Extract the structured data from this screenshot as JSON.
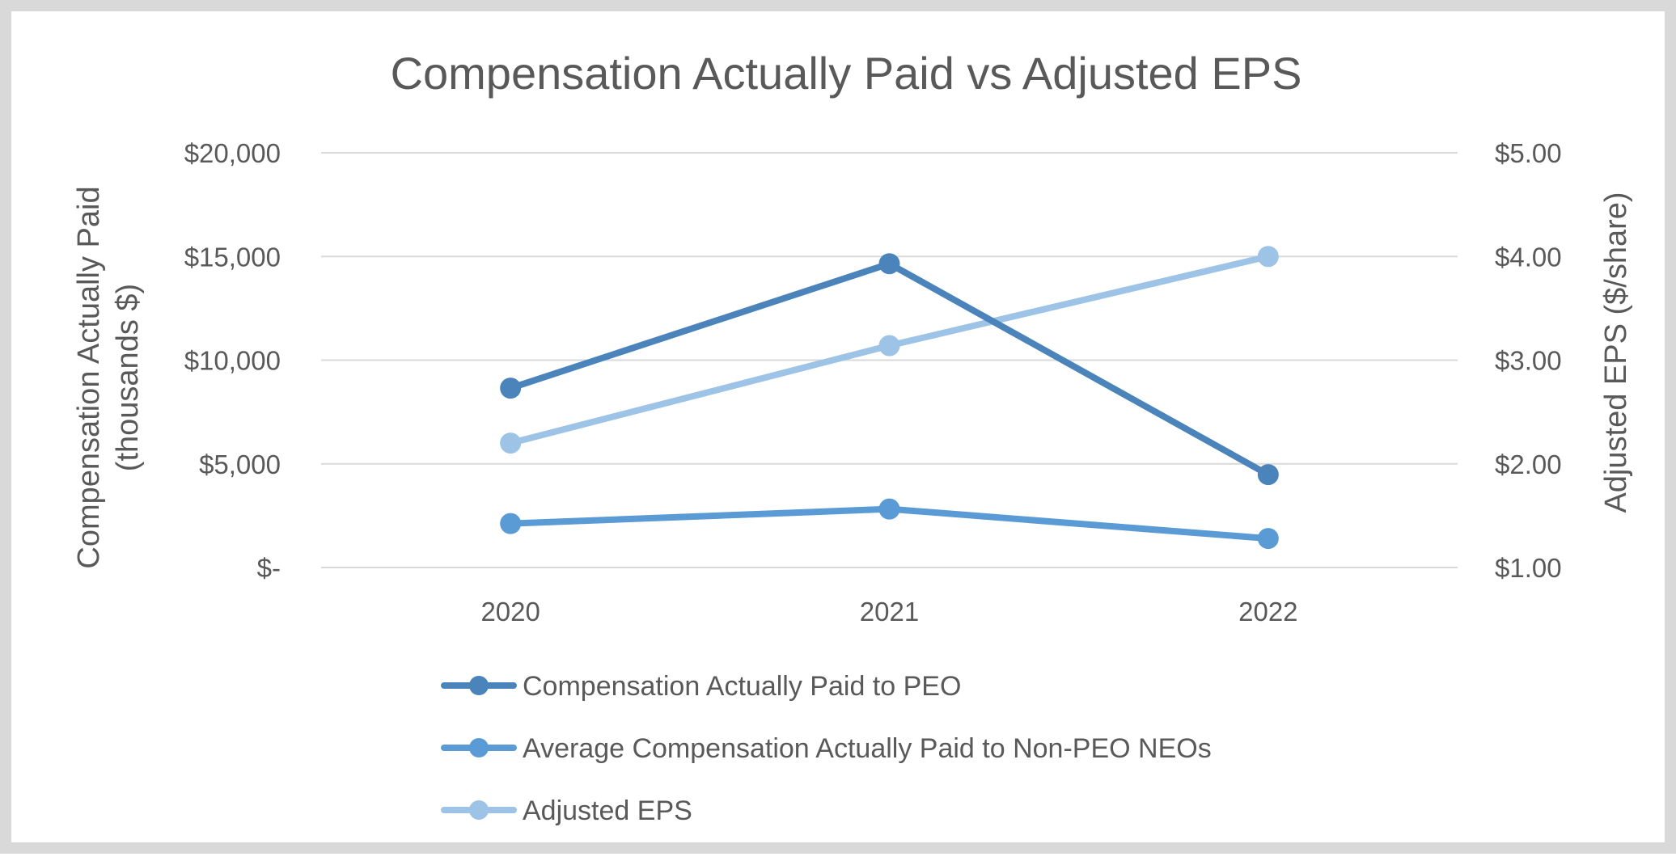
{
  "chart_data": {
    "type": "line",
    "title": "Compensation Actually Paid vs Adjusted EPS",
    "categories": [
      "2020",
      "2021",
      "2022"
    ],
    "y_left": {
      "label_line1": "Compensation Actually Paid",
      "label_line2": "(thousands $)",
      "range": [
        0,
        20000
      ],
      "ticks": [
        {
          "value": 0,
          "label": "$-"
        },
        {
          "value": 5000,
          "label": "$5,000"
        },
        {
          "value": 10000,
          "label": "$10,000"
        },
        {
          "value": 15000,
          "label": "$15,000"
        },
        {
          "value": 20000,
          "label": "$20,000"
        }
      ]
    },
    "y_right": {
      "label": "Adjusted EPS ($/share)",
      "range": [
        1.0,
        5.0
      ],
      "ticks": [
        {
          "value": 1.0,
          "label": "$1.00"
        },
        {
          "value": 2.0,
          "label": "$2.00"
        },
        {
          "value": 3.0,
          "label": "$3.00"
        },
        {
          "value": 4.0,
          "label": "$4.00"
        },
        {
          "value": 5.0,
          "label": "$5.00"
        }
      ]
    },
    "gridlines": true,
    "legend_position": "bottom",
    "series": [
      {
        "name": "Compensation Actually Paid to PEO",
        "axis": "left",
        "color": "#4a84bb",
        "values": [
          8650,
          14650,
          4480
        ]
      },
      {
        "name": "Average Compensation Actually Paid to Non-PEO NEOs",
        "axis": "left",
        "color": "#5b9bd5",
        "values": [
          2120,
          2820,
          1400
        ]
      },
      {
        "name": "Adjusted EPS",
        "axis": "right",
        "color": "#9dc3e6",
        "values": [
          2.2,
          3.14,
          4.0
        ]
      }
    ]
  }
}
